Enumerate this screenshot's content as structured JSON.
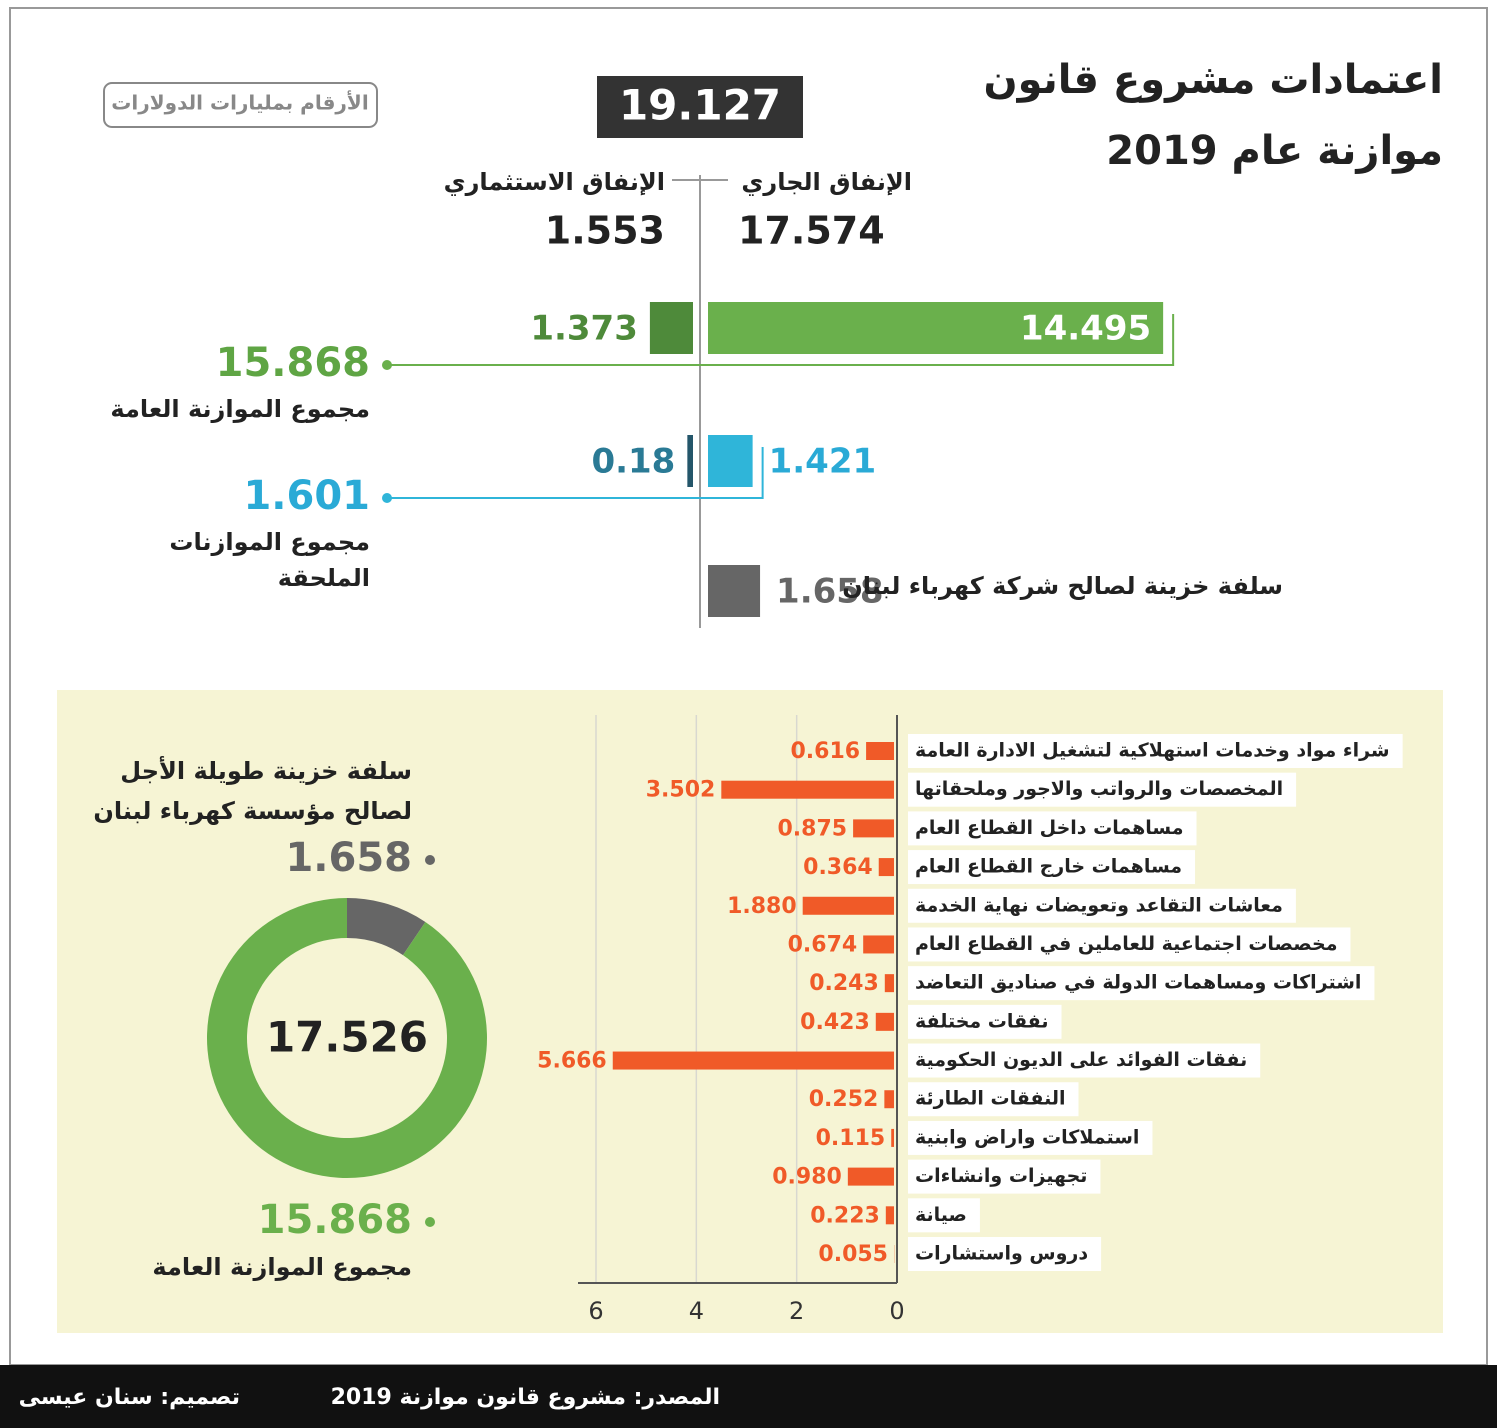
{
  "header": {
    "title_lines": [
      "اعتمادات مشروع قانون",
      "موازنة عام 2019"
    ],
    "unit_note": "الأرقام بمليارات الدولارات"
  },
  "summary": {
    "total": 19.127,
    "current_label": "الإنفاق الجاري",
    "current_value": 17.574,
    "investment_label": "الإنفاق الاستثماري",
    "investment_value": 1.553
  },
  "chart_data": [
    {
      "type": "split_bar",
      "rows": [
        {
          "name_lines": [
            "مجموع الموازنة العامة"
          ],
          "total": 15.868,
          "current": 14.495,
          "investment": 1.373,
          "color": "#6ab04c",
          "investment_color": "#4e8a3a",
          "label_color": "#5fa544"
        },
        {
          "name_lines": [
            "مجموع الموازنات",
            "الملحقة"
          ],
          "total": 1.601,
          "current": 1.421,
          "investment": 0.18,
          "color": "#2fb5d9",
          "investment_color": "#24566a",
          "label_color": "#2aaad6"
        },
        {
          "name_lines": [
            "سلفة خزينة لصالح شركة كهرباء لبنان"
          ],
          "current": 1.658,
          "color": "#666666",
          "label_color": "#666666"
        }
      ]
    },
    {
      "type": "donut",
      "title_lines": [
        "سلفة خزينة طويلة الأجل",
        "لصالح مؤسسة كهرباء لبنان"
      ],
      "center_value": 17.526,
      "series": [
        {
          "name": "مجموع الموازنة العامة",
          "color": "#6ab04c",
          "values": [
            15.868
          ]
        },
        {
          "color": "#666666",
          "values": [
            1.658
          ]
        }
      ]
    },
    {
      "type": "bar",
      "orientation": "horizontal",
      "color": "#f05a28",
      "categories": [
        "شراء مواد وخدمات استهلاكية لتشغيل الادارة العامة",
        "المخصصات والرواتب والاجور وملحقاتها",
        "مساهمات داخل القطاع العام",
        "مساهمات خارج القطاع العام",
        "معاشات التقاعد وتعويضات نهاية الخدمة",
        "مخصصات اجتماعية للعاملين في القطاع العام",
        "اشتراكات ومساهمات الدولة في صناديق التعاضد",
        "نفقات مختلفة",
        "نفقات الفوائد على الديون الحكومية",
        "النفقات الطارئة",
        "استملاكات واراض وابنية",
        "تجهيزات وانشاءات",
        "صيانة",
        "دروس واستشارات"
      ],
      "values": [
        0.616,
        3.502,
        0.875,
        0.364,
        1.88,
        0.674,
        0.243,
        0.423,
        5.666,
        0.252,
        0.115,
        0.98,
        0.223,
        0.055
      ],
      "value_labels": [
        "0.616",
        "3.502",
        "0.875",
        "0.364",
        "1.880",
        "0.674",
        "0.243",
        "0.423",
        "5.666",
        "0.252",
        "0.115",
        "0.980",
        "0.223",
        "0.055"
      ],
      "xlim": [
        0,
        6
      ],
      "xticks": [
        0,
        2,
        4,
        6
      ],
      "x_reversed": true,
      "grid": true
    }
  ],
  "footer": {
    "source": "المصدر: مشروع قانون موازنة 2019",
    "design": "تصميم: سنان عيسى"
  }
}
